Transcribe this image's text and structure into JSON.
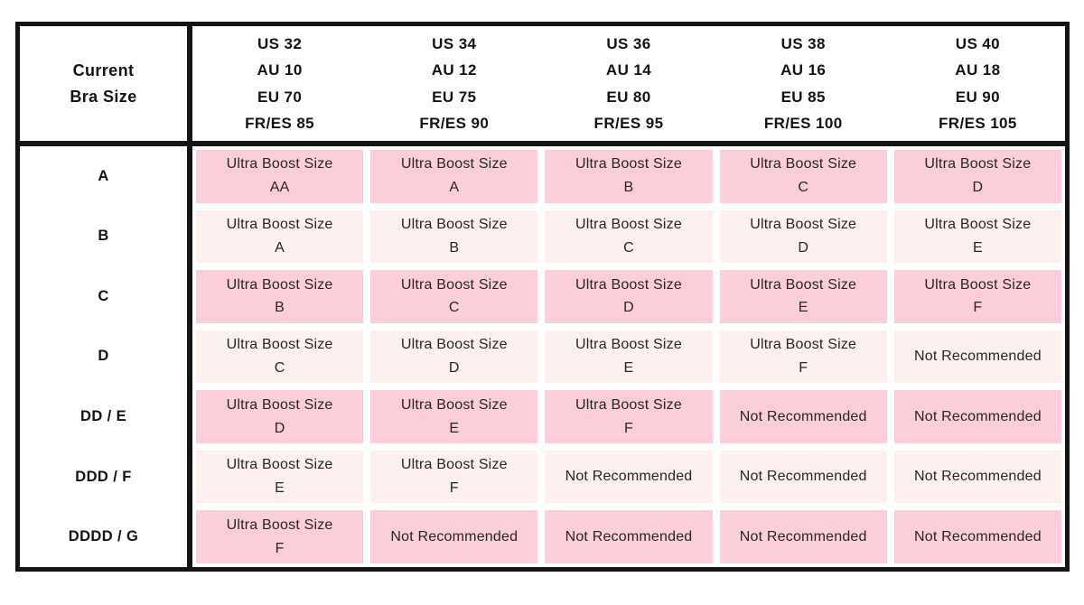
{
  "chart_data": {
    "type": "table",
    "corner_header": "Current\nBra Size",
    "column_headers": [
      "US 32\nAU 10\nEU 70\nFR/ES 85",
      "US 34\nAU 12\nEU 75\nFR/ES 90",
      "US 36\nAU 14\nEU 80\nFR/ES 95",
      "US 38\nAU 16\nEU 85\nFR/ES 100",
      "US 40\nAU 18\nEU 90\nFR/ES 105"
    ],
    "rows": [
      {
        "label": "A",
        "highlighted": true,
        "cells": [
          "Ultra Boost Size\nAA",
          "Ultra Boost Size\nA",
          "Ultra Boost Size\nB",
          "Ultra Boost Size\nC",
          "Ultra Boost Size\nD"
        ]
      },
      {
        "label": "B",
        "highlighted": false,
        "cells": [
          "Ultra Boost Size\nA",
          "Ultra Boost Size\nB",
          "Ultra Boost Size\nC",
          "Ultra Boost Size\nD",
          "Ultra Boost Size\nE"
        ]
      },
      {
        "label": "C",
        "highlighted": true,
        "cells": [
          "Ultra Boost Size\nB",
          "Ultra Boost Size\nC",
          "Ultra Boost Size\nD",
          "Ultra Boost Size\nE",
          "Ultra Boost Size\nF"
        ]
      },
      {
        "label": "D",
        "highlighted": false,
        "cells": [
          "Ultra Boost Size\nC",
          "Ultra Boost Size\nD",
          "Ultra Boost Size\nE",
          "Ultra Boost Size\nF",
          "Not Recommended"
        ]
      },
      {
        "label": "DD / E",
        "highlighted": true,
        "cells": [
          "Ultra Boost Size\nD",
          "Ultra Boost Size\nE",
          "Ultra Boost Size\nF",
          "Not Recommended",
          "Not Recommended"
        ]
      },
      {
        "label": "DDD / F",
        "highlighted": false,
        "cells": [
          "Ultra Boost Size\nE",
          "Ultra Boost Size\nF",
          "Not Recommended",
          "Not Recommended",
          "Not Recommended"
        ]
      },
      {
        "label": "DDDD / G",
        "highlighted": true,
        "cells": [
          "Ultra Boost Size\nF",
          "Not Recommended",
          "Not Recommended",
          "Not Recommended",
          "Not Recommended"
        ]
      }
    ]
  },
  "colors": {
    "cell_pink": "#FBCEDA",
    "cell_light_pink": "#FDF0EE",
    "border": "#131313",
    "header_text": "#131313",
    "cell_text": "#262626"
  }
}
